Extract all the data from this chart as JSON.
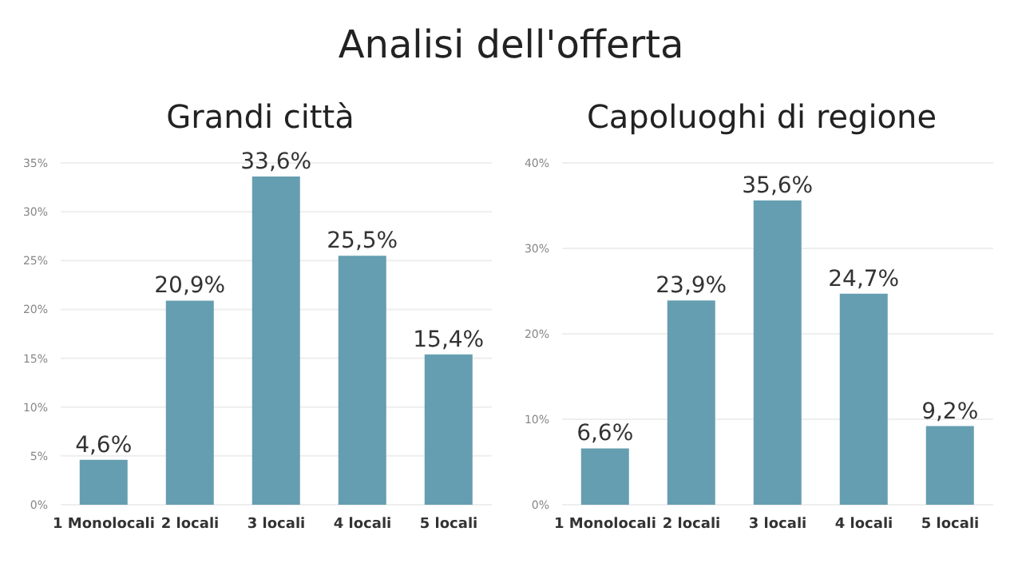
{
  "chart_data": [
    {
      "type": "bar",
      "title": "Analisi dell'offerta",
      "subtitle": "Grandi città",
      "categories": [
        "1 Monolocali",
        "2 locali",
        "3 locali",
        "4 locali",
        "5 locali"
      ],
      "values": [
        4.6,
        20.9,
        33.6,
        25.5,
        15.4
      ],
      "value_labels": [
        "4,6%",
        "20,9%",
        "33,6%",
        "25,5%",
        "15,4%"
      ],
      "color": "#659eb0",
      "ylim": [
        0,
        35
      ],
      "yticks": [
        {
          "value": 0,
          "label": "0%"
        },
        {
          "value": 5,
          "label": "5%"
        },
        {
          "value": 10,
          "label": "10%"
        },
        {
          "value": 15,
          "label": "15%"
        },
        {
          "value": 20,
          "label": "20%"
        },
        {
          "value": 25,
          "label": "25%"
        },
        {
          "value": 30,
          "label": "30%"
        },
        {
          "value": 35,
          "label": "35%"
        }
      ],
      "grid": "y"
    },
    {
      "type": "bar",
      "title": "Capoluoghi di regione",
      "categories": [
        "1 Monolocali",
        "2 locali",
        "3 locali",
        "4 locali",
        "5 locali"
      ],
      "values": [
        6.6,
        23.9,
        35.6,
        24.7,
        9.2
      ],
      "value_labels": [
        "6,6%",
        "23,9%",
        "35,6%",
        "24,7%",
        "9,2%"
      ],
      "color": "#659eb0",
      "ylim": [
        0,
        40
      ],
      "yticks": [
        {
          "value": 0,
          "label": "0%"
        },
        {
          "value": 10,
          "label": "10%"
        },
        {
          "value": 20,
          "label": "20%"
        },
        {
          "value": 30,
          "label": "30%"
        },
        {
          "value": 40,
          "label": "40%"
        }
      ],
      "grid": "y"
    }
  ]
}
